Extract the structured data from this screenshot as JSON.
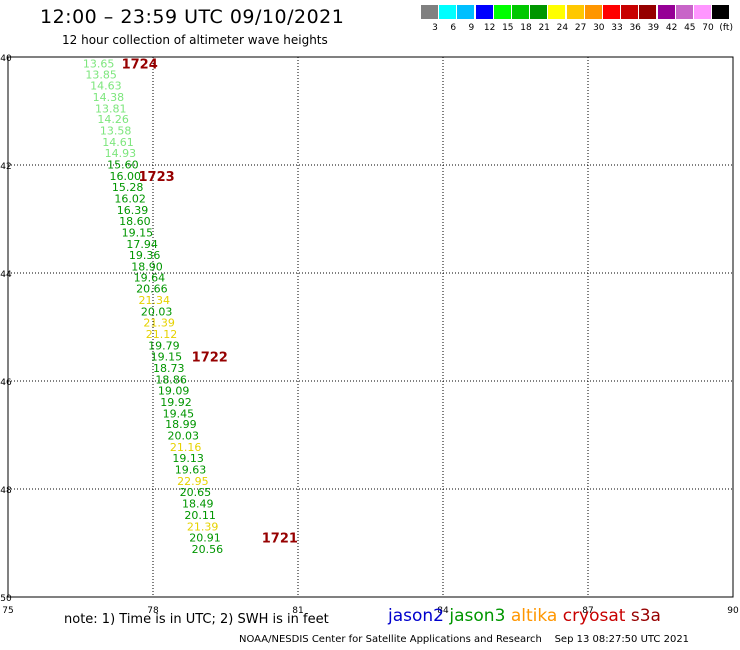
{
  "title": "12:00 – 23:59 UTC 09/10/2021",
  "subtitle": "12 hour collection of altimeter wave heights",
  "colorbar": {
    "colors": [
      "#808080",
      "#00ffff",
      "#00bfff",
      "#0000ff",
      "#00ff00",
      "#00c800",
      "#009600",
      "#ffff00",
      "#ffc800",
      "#ff9600",
      "#ff0000",
      "#c80000",
      "#960000",
      "#960096",
      "#c864c8",
      "#ff96ff",
      "#000000"
    ],
    "labels": [
      "3",
      "6",
      "9",
      "12",
      "15",
      "18",
      "21",
      "24",
      "27",
      "30",
      "33",
      "36",
      "39",
      "42",
      "45",
      "70",
      "(ft)"
    ]
  },
  "chart_data": {
    "type": "scatter",
    "x_ticks": [
      "75",
      "78",
      "81",
      "84",
      "87",
      "90"
    ],
    "y_ticks": [
      "40",
      "42",
      "44",
      "46",
      "48",
      "50"
    ],
    "xlim": [
      75,
      90
    ],
    "ylim": [
      40,
      50
    ],
    "grid": true,
    "series": [
      {
        "name": "altika",
        "points": [
          {
            "lon": 76.55,
            "lat": 40.12,
            "value": "13.65",
            "color": "#7de67d"
          },
          {
            "lon": 76.6,
            "lat": 40.32,
            "value": "13.85",
            "color": "#7de67d"
          },
          {
            "lon": 76.7,
            "lat": 40.53,
            "value": "14.63",
            "color": "#7de67d"
          },
          {
            "lon": 76.75,
            "lat": 40.74,
            "value": "14.38",
            "color": "#7de67d"
          },
          {
            "lon": 76.8,
            "lat": 40.95,
            "value": "13.81",
            "color": "#7de67d"
          },
          {
            "lon": 76.85,
            "lat": 41.15,
            "value": "14.26",
            "color": "#7de67d"
          },
          {
            "lon": 76.9,
            "lat": 41.36,
            "value": "13.58",
            "color": "#7de67d"
          },
          {
            "lon": 76.95,
            "lat": 41.57,
            "value": "14.61",
            "color": "#7de67d"
          },
          {
            "lon": 77.0,
            "lat": 41.78,
            "value": "14.93",
            "color": "#7de67d"
          },
          {
            "lon": 77.05,
            "lat": 41.99,
            "value": "15.60",
            "color": "#009600"
          },
          {
            "lon": 77.1,
            "lat": 42.2,
            "value": "16.00",
            "color": "#009600"
          },
          {
            "lon": 77.15,
            "lat": 42.41,
            "value": "15.28",
            "color": "#009600"
          },
          {
            "lon": 77.2,
            "lat": 42.62,
            "value": "16.02",
            "color": "#009600"
          },
          {
            "lon": 77.25,
            "lat": 42.83,
            "value": "16.39",
            "color": "#009600"
          },
          {
            "lon": 77.3,
            "lat": 43.04,
            "value": "18.60",
            "color": "#009600"
          },
          {
            "lon": 77.35,
            "lat": 43.25,
            "value": "19.15",
            "color": "#009600"
          },
          {
            "lon": 77.45,
            "lat": 43.46,
            "value": "17.94",
            "color": "#009600"
          },
          {
            "lon": 77.5,
            "lat": 43.67,
            "value": "19.36",
            "color": "#009600"
          },
          {
            "lon": 77.55,
            "lat": 43.88,
            "value": "18.90",
            "color": "#009600"
          },
          {
            "lon": 77.6,
            "lat": 44.08,
            "value": "19.64",
            "color": "#009600"
          },
          {
            "lon": 77.65,
            "lat": 44.29,
            "value": "20.66",
            "color": "#009600"
          },
          {
            "lon": 77.7,
            "lat": 44.5,
            "value": "21.34",
            "color": "#e6d200"
          },
          {
            "lon": 77.75,
            "lat": 44.71,
            "value": "20.03",
            "color": "#009600"
          },
          {
            "lon": 77.8,
            "lat": 44.92,
            "value": "21.39",
            "color": "#e6d200"
          },
          {
            "lon": 77.85,
            "lat": 45.13,
            "value": "21.12",
            "color": "#e6d200"
          },
          {
            "lon": 77.9,
            "lat": 45.34,
            "value": "19.79",
            "color": "#009600"
          },
          {
            "lon": 77.95,
            "lat": 45.55,
            "value": "19.15",
            "color": "#009600"
          },
          {
            "lon": 78.0,
            "lat": 45.76,
            "value": "18.73",
            "color": "#009600"
          },
          {
            "lon": 78.05,
            "lat": 45.97,
            "value": "18.86",
            "color": "#009600"
          },
          {
            "lon": 78.1,
            "lat": 46.18,
            "value": "19.09",
            "color": "#009600"
          },
          {
            "lon": 78.15,
            "lat": 46.39,
            "value": "19.92",
            "color": "#009600"
          },
          {
            "lon": 78.2,
            "lat": 46.6,
            "value": "19.45",
            "color": "#009600"
          },
          {
            "lon": 78.25,
            "lat": 46.8,
            "value": "18.99",
            "color": "#009600"
          },
          {
            "lon": 78.3,
            "lat": 47.01,
            "value": "20.03",
            "color": "#009600"
          },
          {
            "lon": 78.35,
            "lat": 47.22,
            "value": "21.16",
            "color": "#e6d200"
          },
          {
            "lon": 78.4,
            "lat": 47.43,
            "value": "19.13",
            "color": "#009600"
          },
          {
            "lon": 78.45,
            "lat": 47.64,
            "value": "19.63",
            "color": "#009600"
          },
          {
            "lon": 78.5,
            "lat": 47.85,
            "value": "22.95",
            "color": "#e6d200"
          },
          {
            "lon": 78.55,
            "lat": 48.06,
            "value": "20.65",
            "color": "#009600"
          },
          {
            "lon": 78.6,
            "lat": 48.27,
            "value": "18.49",
            "color": "#009600"
          },
          {
            "lon": 78.65,
            "lat": 48.48,
            "value": "20.11",
            "color": "#009600"
          },
          {
            "lon": 78.7,
            "lat": 48.69,
            "value": "21.39",
            "color": "#e6d200"
          },
          {
            "lon": 78.75,
            "lat": 48.9,
            "value": "20.91",
            "color": "#009600"
          },
          {
            "lon": 78.8,
            "lat": 49.11,
            "value": "20.56",
            "color": "#009600"
          }
        ]
      }
    ],
    "pass_labels": [
      {
        "lon": 77.35,
        "lat": 40.12,
        "text": "1724",
        "color": "#960000"
      },
      {
        "lon": 77.7,
        "lat": 42.2,
        "text": "1723",
        "color": "#960000"
      },
      {
        "lon": 78.8,
        "lat": 45.55,
        "text": "1722",
        "color": "#960000"
      },
      {
        "lon": 80.25,
        "lat": 48.9,
        "text": "1721",
        "color": "#960000"
      }
    ]
  },
  "note": "note:  1) Time is in UTC;  2) SWH is in feet",
  "legend": [
    {
      "text": "jason2",
      "color": "#0000cc"
    },
    {
      "text": "jason3",
      "color": "#009600"
    },
    {
      "text": "altika",
      "color": "#ff9600"
    },
    {
      "text": "cryosat",
      "color": "#c80000"
    },
    {
      "text": "s3a",
      "color": "#960000"
    }
  ],
  "credit": "NOAA/NESDIS Center for Satellite Applications and Research    Sep 13 08:27:50 UTC 2021"
}
